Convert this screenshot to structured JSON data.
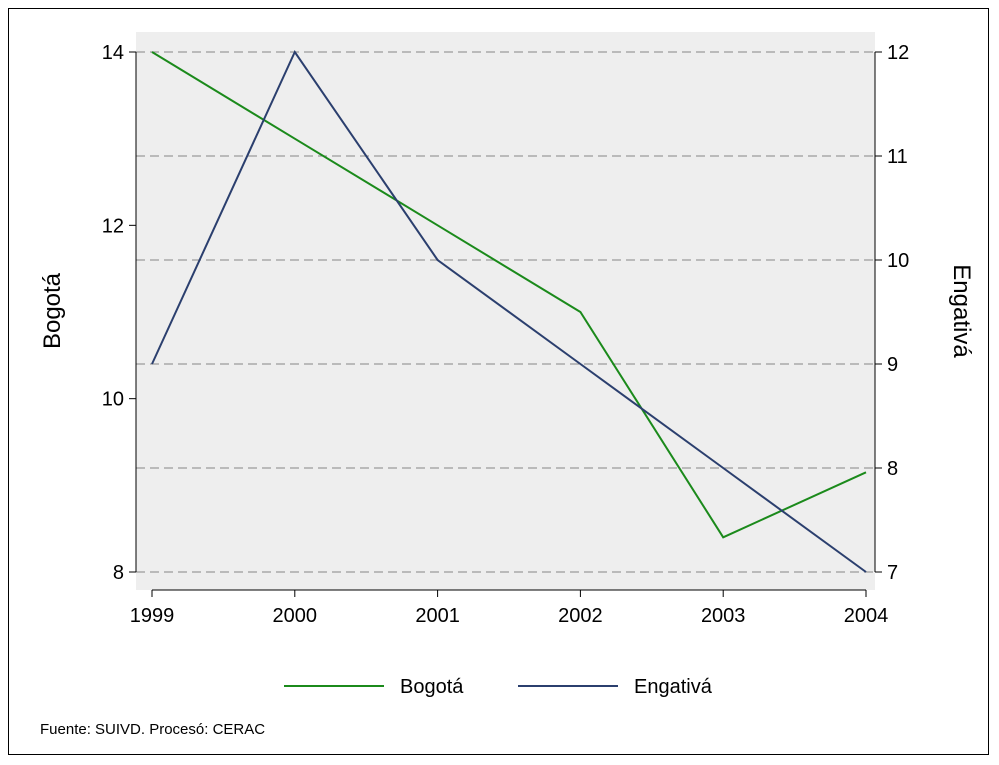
{
  "chart_data": {
    "type": "line",
    "x": [
      "1999",
      "2000",
      "2001",
      "2002",
      "2003",
      "2004"
    ],
    "series": [
      {
        "name": "Bogotá",
        "axis": "left",
        "color": "#1b8a1b",
        "values": [
          14,
          13,
          12,
          11,
          8.4,
          9.15
        ]
      },
      {
        "name": "Engativá",
        "axis": "right",
        "color": "#2b3f6e",
        "values": [
          9,
          12,
          10,
          9,
          8,
          7
        ]
      }
    ],
    "y_left": {
      "label": "Bogotá",
      "ticks": [
        8,
        10,
        12,
        14
      ],
      "range": [
        8,
        14
      ]
    },
    "y_right": {
      "label": "Engativá",
      "ticks": [
        7,
        8,
        9,
        10,
        11,
        12
      ],
      "range": [
        7,
        12
      ]
    },
    "grid": "horizontal dashed at right-axis ticks",
    "legend": "bottom",
    "note": "Fuente: SUIVD. Procesó: CERAC"
  }
}
